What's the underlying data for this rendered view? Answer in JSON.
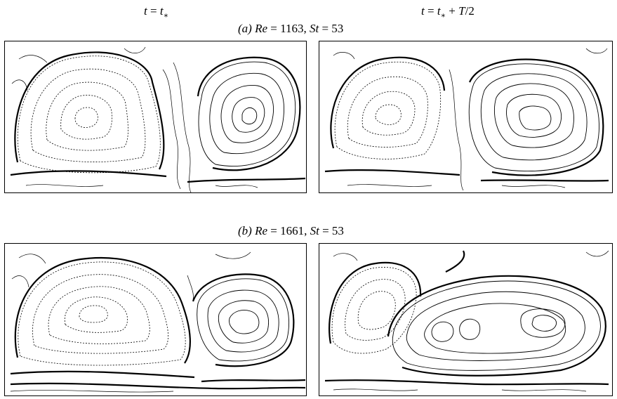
{
  "column_headers": {
    "left": {
      "lhs": "t",
      "eq": " = ",
      "rhs": "t",
      "sub": "∗"
    },
    "right": {
      "lhs": "t",
      "eq": " = ",
      "rhs": "t",
      "sub": "∗",
      "tail": " + ",
      "T": "T",
      "frac": "/2"
    }
  },
  "rows": [
    {
      "tag": "(a)",
      "re_label": "Re",
      "re_value": " = 1163, ",
      "st_label": "St",
      "st_value": " = 53"
    },
    {
      "tag": "(b)",
      "re_label": "Re",
      "re_value": " = 1661, ",
      "st_label": "St",
      "st_value": " = 53"
    }
  ],
  "panels": [
    {
      "id": "a-left",
      "line_color": "#000000"
    },
    {
      "id": "a-right",
      "line_color": "#000000"
    },
    {
      "id": "b-left",
      "line_color": "#000000"
    },
    {
      "id": "b-right",
      "line_color": "#000000"
    }
  ]
}
